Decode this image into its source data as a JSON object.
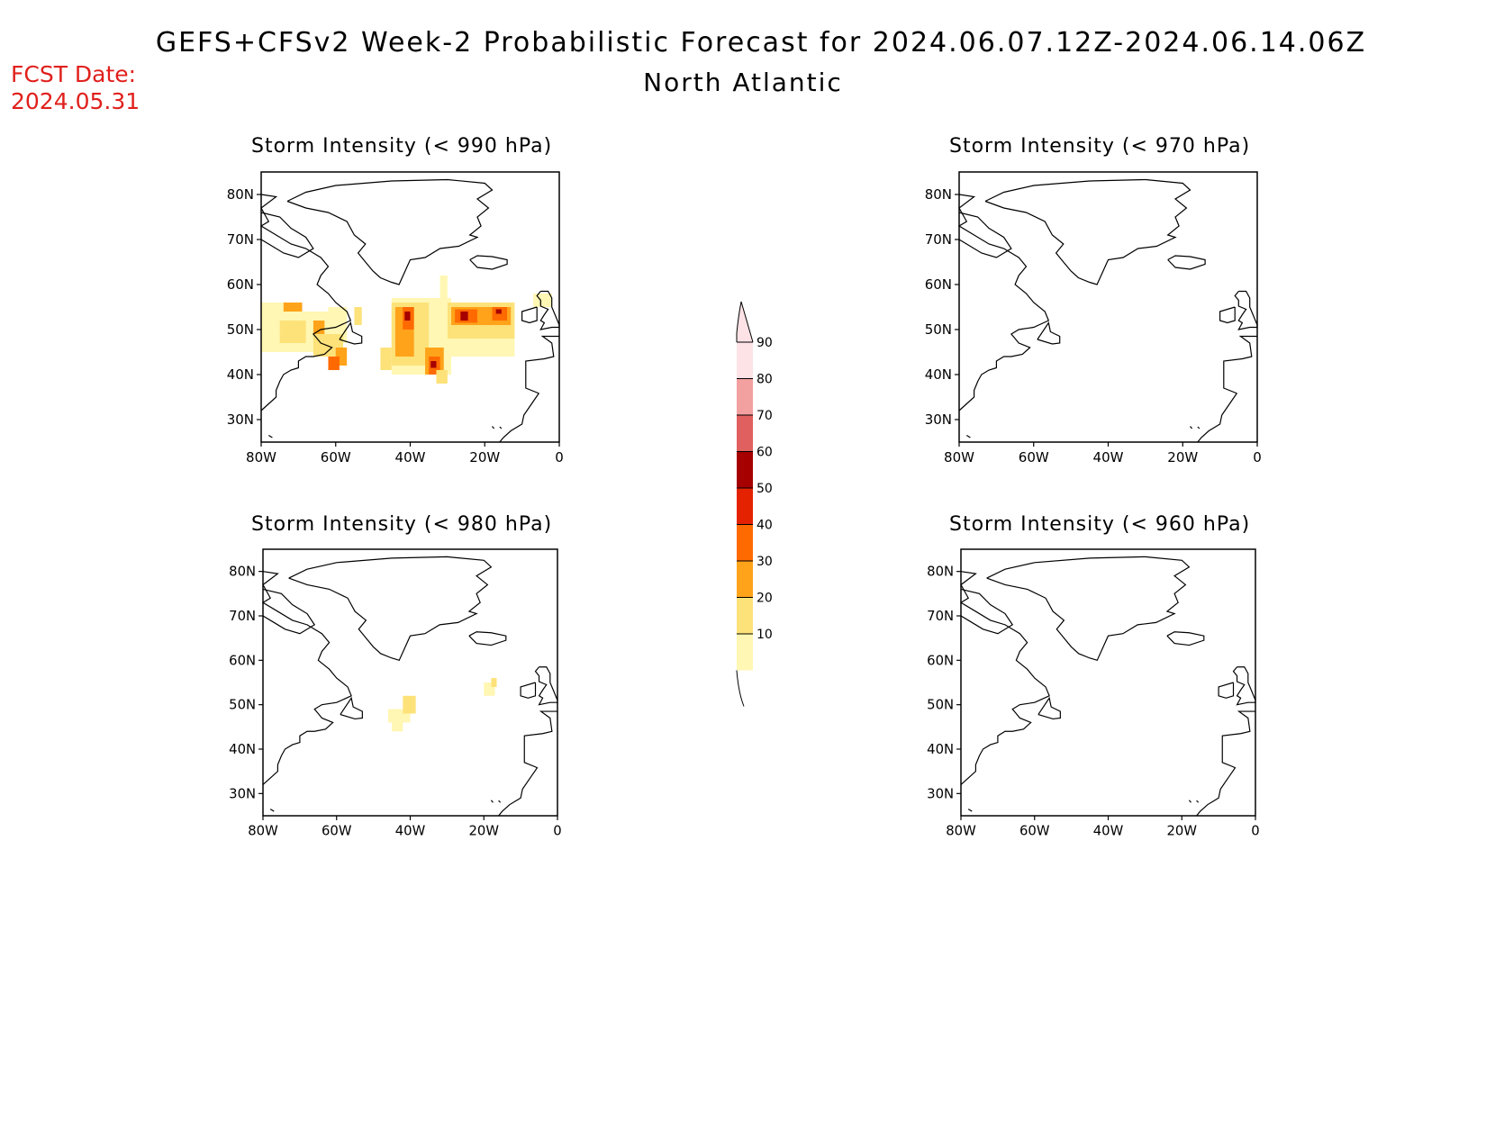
{
  "header": {
    "title": "GEFS+CFSv2 Week-2 Probabilistic Forecast for 2024.06.07.12Z-2024.06.14.06Z",
    "region": "North Atlantic",
    "fcst_label": "FCST Date:",
    "fcst_value": "2024.05.31"
  },
  "panels": [
    {
      "title": "Storm Intensity (< 990 hPa)"
    },
    {
      "title": "Storm Intensity (< 970 hPa)"
    },
    {
      "title": "Storm Intensity (< 980 hPa)"
    },
    {
      "title": "Storm Intensity (< 960 hPa)"
    }
  ],
  "axes": {
    "lon_ticks": [
      "80W",
      "60W",
      "40W",
      "20W",
      "0"
    ],
    "lat_ticks": [
      "80N",
      "70N",
      "60N",
      "50N",
      "40N",
      "30N"
    ],
    "lon_range": [
      -80,
      0
    ],
    "lat_range": [
      25,
      85
    ]
  },
  "colorbar": {
    "levels": [
      "10",
      "20",
      "30",
      "40",
      "50",
      "60",
      "70",
      "80",
      "90"
    ],
    "colors": [
      "#fff7b3",
      "#fde27a",
      "#ffa31a",
      "#ff6a00",
      "#e52200",
      "#a60000",
      "#e06060",
      "#f3a0a0",
      "#fde2e6"
    ]
  }
}
